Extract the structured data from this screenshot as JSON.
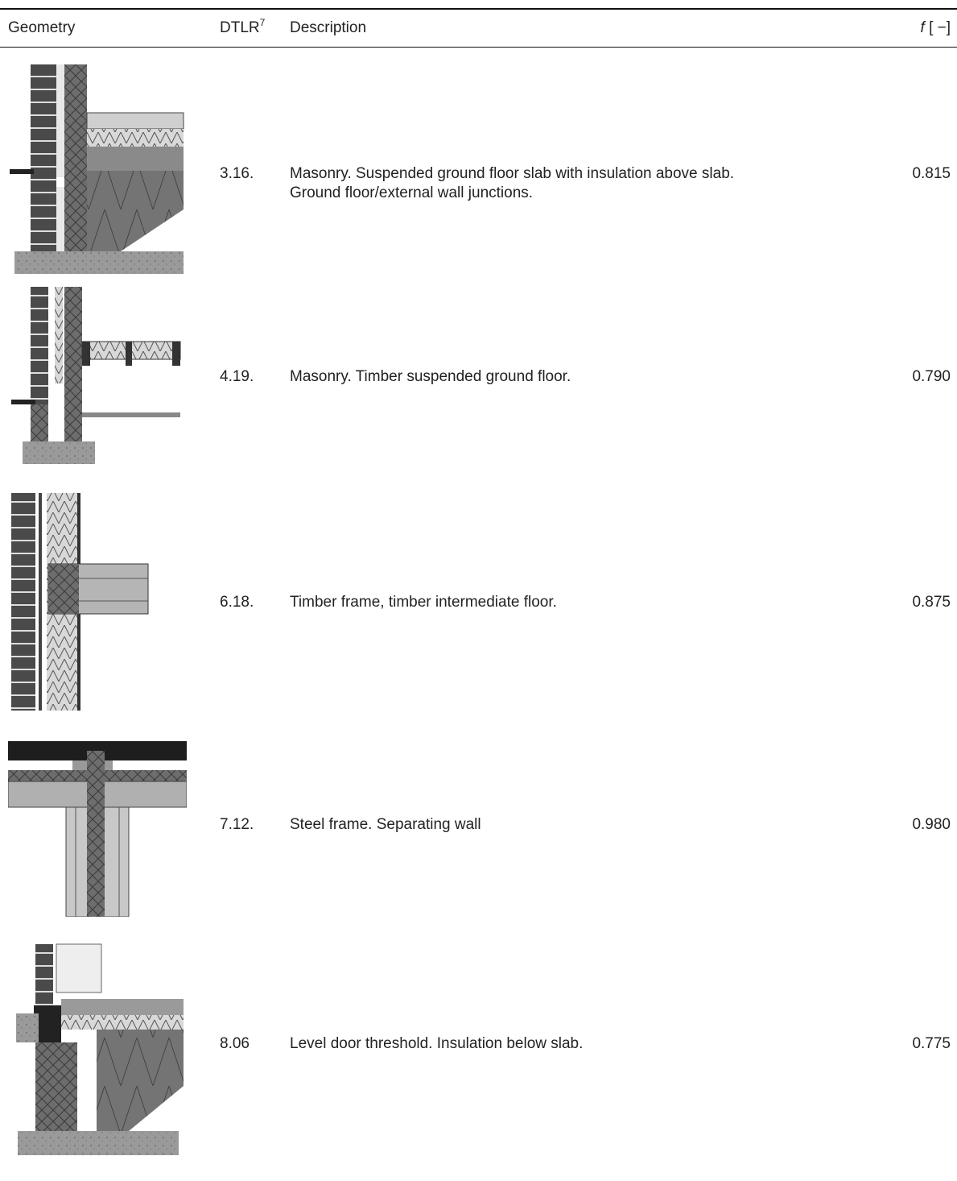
{
  "header": {
    "geometry": "Geometry",
    "dtlr": "DTLR",
    "dtlr_sup": "7",
    "description": "Description",
    "f_symbol": "f",
    "f_unit": "[ −]"
  },
  "rows": [
    {
      "code": "3.16.",
      "desc_lines": [
        "Masonry. Suspended ground floor slab with insulation above slab.",
        "Ground floor/external wall junctions."
      ],
      "f": "0.815"
    },
    {
      "code": "4.19.",
      "desc_lines": [
        "Masonry. Timber suspended ground floor."
      ],
      "f": "0.790"
    },
    {
      "code": "6.18.",
      "desc_lines": [
        "Timber frame, timber intermediate floor."
      ],
      "f": "0.875"
    },
    {
      "code": "7.12.",
      "desc_lines": [
        "Steel frame. Separating wall"
      ],
      "f": "0.980"
    },
    {
      "code": "8.06",
      "desc_lines": [
        "Level door threshold. Insulation below slab."
      ],
      "f": "0.775"
    }
  ]
}
